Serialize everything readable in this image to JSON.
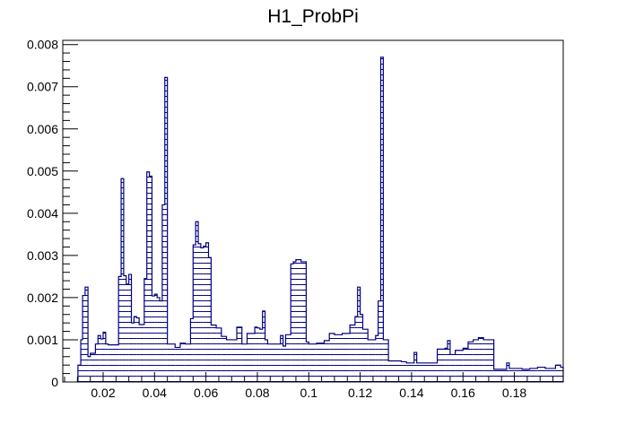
{
  "chart_data": {
    "type": "bar",
    "title": "H1_ProbPi",
    "xlabel": "",
    "ylabel": "",
    "xlim": [
      0.0043,
      0.199
    ],
    "ylim": [
      0,
      0.0081
    ],
    "x_ticks": [
      0.02,
      0.04,
      0.06,
      0.08,
      0.1,
      0.12,
      0.14,
      0.16,
      0.18
    ],
    "x_tick_labels": [
      "0.02",
      "0.04",
      "0.06",
      "0.08",
      "0.1",
      "0.12",
      "0.14",
      "0.16",
      "0.18"
    ],
    "y_ticks": [
      0,
      0.001,
      0.002,
      0.003,
      0.004,
      0.005,
      0.006,
      0.007,
      0.008
    ],
    "y_tick_labels": [
      "0",
      "0.001",
      "0.002",
      "0.003",
      "0.004",
      "0.005",
      "0.006",
      "0.007",
      "0.008"
    ],
    "fill_style": "horizontal-hatch",
    "line_color": "#000080",
    "bins": [
      [
        0.0102,
        0.0113,
        0.0004
      ],
      [
        0.0113,
        0.012,
        0.001
      ],
      [
        0.012,
        0.013,
        0.00205
      ],
      [
        0.013,
        0.0141,
        0.00225
      ],
      [
        0.0141,
        0.015,
        0.0006
      ],
      [
        0.015,
        0.017,
        0.00068
      ],
      [
        0.017,
        0.018,
        0.0009
      ],
      [
        0.018,
        0.019,
        0.0011
      ],
      [
        0.019,
        0.02,
        0.00102
      ],
      [
        0.02,
        0.021,
        0.00118
      ],
      [
        0.021,
        0.022,
        0.0009
      ],
      [
        0.022,
        0.026,
        0.00088
      ],
      [
        0.026,
        0.027,
        0.0025
      ],
      [
        0.027,
        0.028,
        0.00482
      ],
      [
        0.028,
        0.029,
        0.00252
      ],
      [
        0.029,
        0.03,
        0.00232
      ],
      [
        0.03,
        0.031,
        0.00255
      ],
      [
        0.031,
        0.032,
        0.0014
      ],
      [
        0.032,
        0.033,
        0.00155
      ],
      [
        0.033,
        0.034,
        0.00152
      ],
      [
        0.034,
        0.036,
        0.00136
      ],
      [
        0.036,
        0.037,
        0.00245
      ],
      [
        0.037,
        0.038,
        0.00498
      ],
      [
        0.038,
        0.039,
        0.00488
      ],
      [
        0.039,
        0.04,
        0.00204
      ],
      [
        0.04,
        0.041,
        0.00208
      ],
      [
        0.041,
        0.042,
        0.002
      ],
      [
        0.042,
        0.043,
        0.00192
      ],
      [
        0.043,
        0.044,
        0.0042
      ],
      [
        0.044,
        0.045,
        0.00722
      ],
      [
        0.045,
        0.048,
        0.0009
      ],
      [
        0.048,
        0.05,
        0.00082
      ],
      [
        0.05,
        0.052,
        0.00092
      ],
      [
        0.052,
        0.054,
        0.0009
      ],
      [
        0.054,
        0.055,
        0.0015
      ],
      [
        0.055,
        0.056,
        0.00325
      ],
      [
        0.056,
        0.057,
        0.0038
      ],
      [
        0.057,
        0.058,
        0.00328
      ],
      [
        0.058,
        0.059,
        0.00318
      ],
      [
        0.059,
        0.06,
        0.00322
      ],
      [
        0.06,
        0.061,
        0.0033
      ],
      [
        0.061,
        0.062,
        0.00295
      ],
      [
        0.062,
        0.064,
        0.00135
      ],
      [
        0.064,
        0.066,
        0.00128
      ],
      [
        0.066,
        0.068,
        0.00108
      ],
      [
        0.068,
        0.07,
        0.001
      ],
      [
        0.07,
        0.072,
        0.001
      ],
      [
        0.072,
        0.074,
        0.0013
      ],
      [
        0.074,
        0.076,
        0.0009
      ],
      [
        0.076,
        0.079,
        0.00115
      ],
      [
        0.079,
        0.08,
        0.0013
      ],
      [
        0.08,
        0.081,
        0.00128
      ],
      [
        0.081,
        0.082,
        0.00125
      ],
      [
        0.082,
        0.083,
        0.00168
      ],
      [
        0.083,
        0.084,
        0.001
      ],
      [
        0.084,
        0.089,
        0.0009
      ],
      [
        0.089,
        0.09,
        0.0011
      ],
      [
        0.09,
        0.091,
        0.00085
      ],
      [
        0.091,
        0.093,
        0.00112
      ],
      [
        0.093,
        0.094,
        0.0028
      ],
      [
        0.094,
        0.095,
        0.00285
      ],
      [
        0.095,
        0.097,
        0.0029
      ],
      [
        0.097,
        0.099,
        0.00285
      ],
      [
        0.099,
        0.1,
        0.00095
      ],
      [
        0.1,
        0.103,
        0.0009
      ],
      [
        0.103,
        0.106,
        0.00092
      ],
      [
        0.106,
        0.108,
        0.00098
      ],
      [
        0.108,
        0.11,
        0.00115
      ],
      [
        0.11,
        0.113,
        0.00112
      ],
      [
        0.113,
        0.116,
        0.00115
      ],
      [
        0.116,
        0.118,
        0.00135
      ],
      [
        0.118,
        0.119,
        0.00155
      ],
      [
        0.119,
        0.12,
        0.00225
      ],
      [
        0.12,
        0.121,
        0.0016
      ],
      [
        0.121,
        0.123,
        0.00125
      ],
      [
        0.123,
        0.126,
        0.001
      ],
      [
        0.126,
        0.127,
        0.0011
      ],
      [
        0.127,
        0.128,
        0.00192
      ],
      [
        0.128,
        0.129,
        0.0077
      ],
      [
        0.129,
        0.131,
        0.001
      ],
      [
        0.131,
        0.136,
        0.0005
      ],
      [
        0.136,
        0.138,
        0.00048
      ],
      [
        0.138,
        0.141,
        0.00045
      ],
      [
        0.141,
        0.142,
        0.0007
      ],
      [
        0.142,
        0.15,
        0.00045
      ],
      [
        0.15,
        0.153,
        0.00078
      ],
      [
        0.153,
        0.154,
        0.0008
      ],
      [
        0.154,
        0.155,
        0.00098
      ],
      [
        0.155,
        0.157,
        0.00065
      ],
      [
        0.157,
        0.16,
        0.00075
      ],
      [
        0.16,
        0.162,
        0.0008
      ],
      [
        0.162,
        0.164,
        0.00095
      ],
      [
        0.164,
        0.166,
        0.001
      ],
      [
        0.166,
        0.168,
        0.00105
      ],
      [
        0.168,
        0.172,
        0.001
      ],
      [
        0.172,
        0.177,
        0.0003
      ],
      [
        0.177,
        0.178,
        0.00045
      ],
      [
        0.178,
        0.18,
        0.00032
      ],
      [
        0.18,
        0.183,
        0.00032
      ],
      [
        0.183,
        0.186,
        0.0003
      ],
      [
        0.186,
        0.189,
        0.00032
      ],
      [
        0.189,
        0.192,
        0.00035
      ],
      [
        0.192,
        0.196,
        0.00032
      ],
      [
        0.196,
        0.198,
        0.0004
      ],
      [
        0.198,
        0.199,
        0.00035
      ]
    ]
  }
}
